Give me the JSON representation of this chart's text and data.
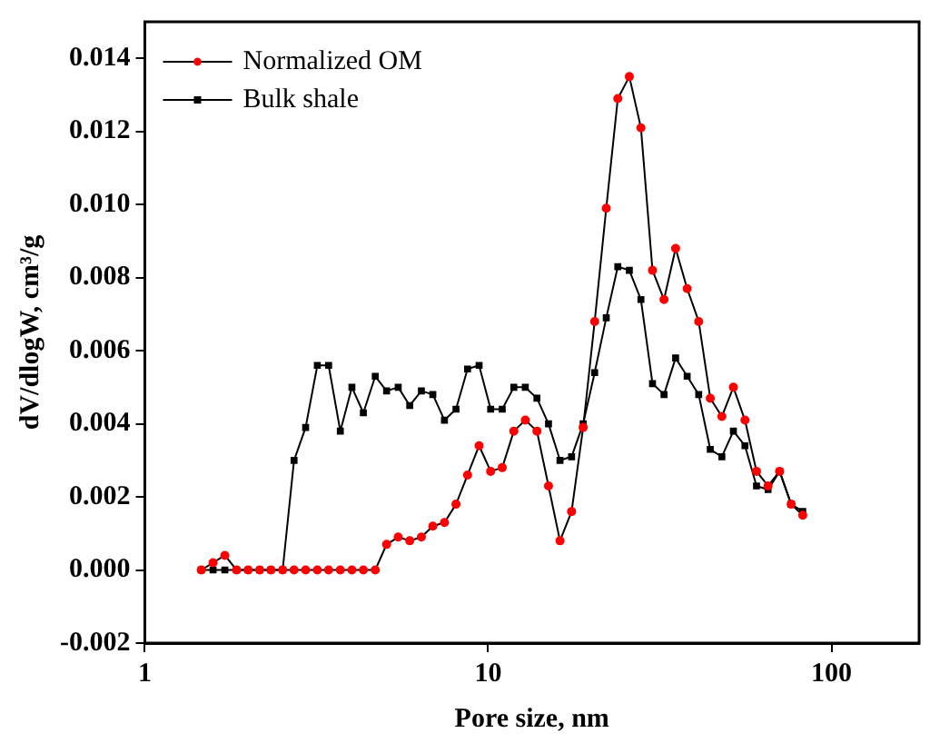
{
  "chart_data": {
    "type": "line",
    "xlabel": "Pore size, nm",
    "ylabel": "dV/dlogW, cm³/g",
    "log": "x",
    "xlim": [
      1,
      180
    ],
    "xticks": [
      1,
      10,
      100
    ],
    "ylim": [
      -0.002,
      0.015
    ],
    "yticks": [
      {
        "value": -0.002,
        "label": "-0.002"
      },
      {
        "value": 0,
        "label": "0.000"
      },
      {
        "value": 0.002,
        "label": "0.002"
      },
      {
        "value": 0.004,
        "label": "0.004"
      },
      {
        "value": 0.006,
        "label": "0.006"
      },
      {
        "value": 0.008,
        "label": "0.008"
      },
      {
        "value": 0.01,
        "label": "0.010"
      },
      {
        "value": 0.012,
        "label": "0.012"
      },
      {
        "value": 0.014,
        "label": "0.014"
      }
    ],
    "grid": false,
    "legend": "top left",
    "line_style": "solid",
    "x": [
      1.46,
      1.58,
      1.71,
      1.85,
      2.0,
      2.16,
      2.33,
      2.52,
      2.72,
      2.94,
      3.18,
      3.43,
      3.71,
      4.01,
      4.33,
      4.69,
      5.06,
      5.47,
      5.91,
      6.39,
      6.9,
      7.46,
      8.06,
      8.71,
      9.41,
      10.17,
      10.99,
      11.88,
      12.83,
      13.87,
      14.99,
      16.19,
      17.5,
      18.91,
      20.43,
      22.08,
      23.86,
      25.78,
      27.86,
      30.11,
      32.53,
      35.16,
      37.99,
      41.05,
      44.36,
      47.94,
      51.8,
      55.98,
      60.49,
      65.36,
      70.63,
      76.32,
      82.47
    ],
    "series": [
      {
        "name": "Normalized OM",
        "color": "#ff0000",
        "marker": "circle",
        "values": [
          0,
          0.0002,
          0.0004,
          0,
          0,
          0,
          0,
          0,
          0,
          0,
          0,
          0,
          0,
          0,
          0,
          0,
          0.0007,
          0.0009,
          0.0008,
          0.0009,
          0.0012,
          0.0013,
          0.0018,
          0.0026,
          0.0034,
          0.0027,
          0.0028,
          0.0038,
          0.0041,
          0.0038,
          0.0023,
          0.0008,
          0.0016,
          0.0039,
          0.0068,
          0.0099,
          0.0129,
          0.0135,
          0.0121,
          0.0082,
          0.0074,
          0.0088,
          0.0077,
          0.0068,
          0.0047,
          0.0042,
          0.005,
          0.0041,
          0.0027,
          0.0023,
          0.0027,
          0.0018,
          0.0015
        ]
      },
      {
        "name": "Bulk shale",
        "color": "#000000",
        "marker": "square",
        "values": [
          0,
          0,
          0,
          0,
          0,
          0,
          0,
          0,
          0.003,
          0.0039,
          0.0056,
          0.0056,
          0.0038,
          0.005,
          0.0043,
          0.0053,
          0.0049,
          0.005,
          0.0045,
          0.0049,
          0.0048,
          0.0041,
          0.0044,
          0.0055,
          0.0056,
          0.0044,
          0.0044,
          0.005,
          0.005,
          0.0047,
          0.004,
          0.003,
          0.0031,
          0.004,
          0.0054,
          0.0069,
          0.0083,
          0.0082,
          0.0074,
          0.0051,
          0.0048,
          0.0058,
          0.0053,
          0.0048,
          0.0033,
          0.0031,
          0.0038,
          0.0034,
          0.0023,
          0.0022,
          0.0027,
          0.0018,
          0.0016
        ]
      }
    ]
  }
}
